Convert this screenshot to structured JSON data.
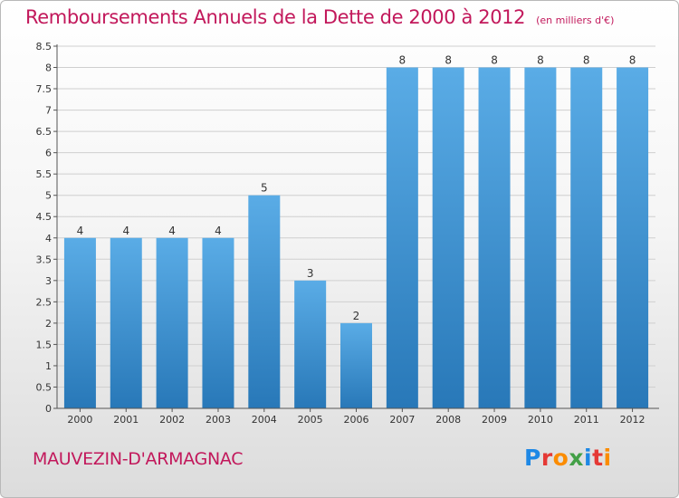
{
  "header": {
    "title": "Remboursements Annuels de la Dette de 2000 à 2012",
    "subtitle": "(en milliers d'€)"
  },
  "footer": {
    "commune": "MAUVEZIN-D'ARMAGNAC",
    "logo_text": "Proxiti",
    "logo_colors": [
      "#1e88e5",
      "#e53935",
      "#fb8c00",
      "#43a047",
      "#1e88e5",
      "#e53935",
      "#fb8c00"
    ]
  },
  "colors": {
    "accent": "#c2185b",
    "bar_light": "#5aace6",
    "bar_dark": "#2878b8",
    "grid": "#cfcfcf"
  },
  "chart_data": {
    "type": "bar",
    "categories": [
      "2000",
      "2001",
      "2002",
      "2003",
      "2004",
      "2005",
      "2006",
      "2007",
      "2008",
      "2009",
      "2010",
      "2011",
      "2012"
    ],
    "values": [
      4,
      4,
      4,
      4,
      5,
      3,
      2,
      8,
      8,
      8,
      8,
      8,
      8
    ],
    "data_labels": [
      "4",
      "4",
      "4",
      "4",
      "5",
      "3",
      "2",
      "8",
      "8",
      "8",
      "8",
      "8",
      "8"
    ],
    "yticks": [
      "0",
      "0.5",
      "1",
      "1.5",
      "2",
      "2.5",
      "3",
      "3.5",
      "4",
      "4.5",
      "5",
      "5.5",
      "6",
      "6.5",
      "7",
      "7.5",
      "8",
      "8.5"
    ],
    "ylim": [
      0,
      8.5
    ],
    "grid": true,
    "title": "Remboursements Annuels de la Dette de 2000 à 2012",
    "xlabel": "",
    "ylabel": ""
  }
}
